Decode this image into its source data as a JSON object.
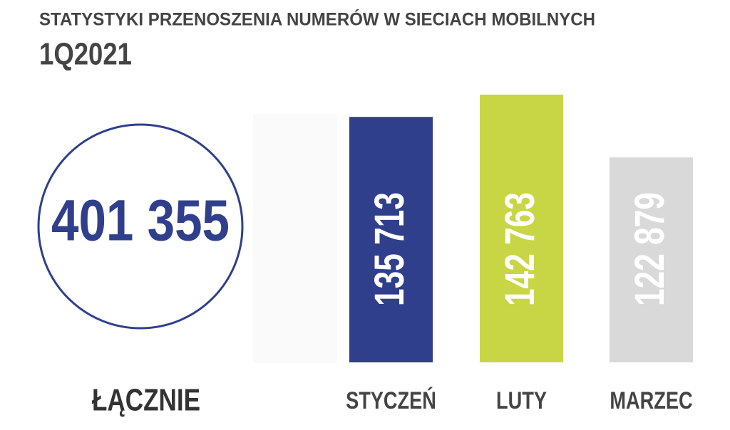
{
  "chart_data": {
    "type": "bar",
    "title": "STATYSTYKI PRZENOSZENIA NUMERÓW W SIECIACH MOBILNYCH",
    "subtitle": "1Q2021",
    "categories": [
      "STYCZEŃ",
      "LUTY",
      "MARZEC"
    ],
    "values": [
      135713,
      142763,
      122879
    ],
    "value_labels": [
      "135 713",
      "142 763",
      "122 879"
    ],
    "colors": [
      "#303f8c",
      "#c8d645",
      "#d9d9d9"
    ],
    "ylim": [
      58000,
      145000
    ],
    "total": {
      "label": "ŁĄCZNIE",
      "value": 401355,
      "value_label": "401 355",
      "color": "#303f8c"
    }
  }
}
